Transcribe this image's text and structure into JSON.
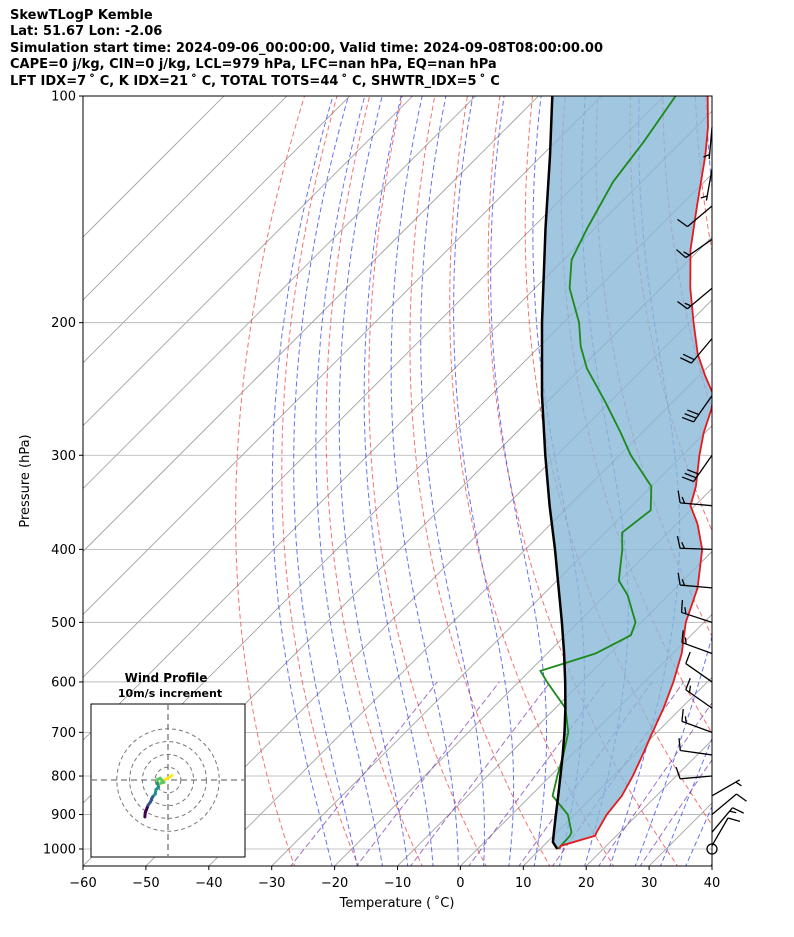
{
  "header": {
    "line1": "SkewTLogP Kemble",
    "line2": "Lat: 51.67   Lon: -2.06",
    "line3": "Simulation start time: 2024-09-06_00:00:00, Valid time: 2024-09-08T08:00:00.00",
    "line4": "CAPE=0 j/kg, CIN=0 j/kg, LCL=979 hPa, LFC=nan hPa, EQ=nan hPa",
    "line5": "LFT IDX=7 ˚ C, K IDX=21 ˚ C, TOTAL TOTS=44 ˚ C, SHWTR_IDX=5 ˚ C"
  },
  "chart_data": {
    "type": "skew-t log-p",
    "xlabel": "Temperature ( ˚C)",
    "ylabel": "Pressure (hPa)",
    "xlim": [
      -60,
      40
    ],
    "ylim_hpa": [
      1050,
      100
    ],
    "x_ticks": [
      -60,
      -50,
      -40,
      -30,
      -20,
      -10,
      0,
      10,
      20,
      30,
      40
    ],
    "x_tick_labels": [
      "−60",
      "−50",
      "−40",
      "−30",
      "−20",
      "−10",
      "0",
      "10",
      "20",
      "30",
      "40"
    ],
    "y_ticks": [
      100,
      200,
      300,
      400,
      500,
      600,
      700,
      800,
      900,
      1000
    ],
    "y_tick_labels": [
      "100",
      "200",
      "300",
      "400",
      "500",
      "600",
      "700",
      "800",
      "900",
      "1000"
    ],
    "colors": {
      "temperature": "#e41a1c",
      "dewpoint": "#1a8a1a",
      "parcel": "#000000",
      "cape_shade": "#8ab8d8",
      "dry_adiabat": "#ee4444",
      "moist_adiabat": "#3344ee",
      "mixing_ratio": "#7733aa",
      "isotherm": "#999999"
    },
    "series": [
      {
        "name": "temperature",
        "points": [
          [
            1000,
            13
          ],
          [
            990,
            12.8
          ],
          [
            960,
            16.6
          ],
          [
            950,
            16.3
          ],
          [
            900,
            15.1
          ],
          [
            850,
            14.5
          ],
          [
            800,
            13.1
          ],
          [
            750,
            11.3
          ],
          [
            700,
            9.3
          ],
          [
            650,
            7.2
          ],
          [
            600,
            4.6
          ],
          [
            550,
            1.4
          ],
          [
            500,
            -2.9
          ],
          [
            450,
            -6.5
          ],
          [
            400,
            -11.9
          ],
          [
            370,
            -16.7
          ],
          [
            350,
            -20.7
          ],
          [
            330,
            -22.9
          ],
          [
            300,
            -27.3
          ],
          [
            280,
            -30.2
          ],
          [
            260,
            -32.8
          ],
          [
            250,
            -34.5
          ],
          [
            235,
            -39.1
          ],
          [
            220,
            -43.7
          ],
          [
            200,
            -49.3
          ],
          [
            180,
            -55.3
          ],
          [
            160,
            -61.4
          ],
          [
            140,
            -67.3
          ],
          [
            120,
            -74.0
          ],
          [
            110,
            -78.1
          ],
          [
            100,
            -83.1
          ]
        ]
      },
      {
        "name": "dewpoint",
        "points": [
          [
            1000,
            12.8
          ],
          [
            960,
            12.6
          ],
          [
            950,
            12.3
          ],
          [
            900,
            8.9
          ],
          [
            850,
            3.5
          ],
          [
            800,
            1.1
          ],
          [
            750,
            -1.3
          ],
          [
            700,
            -4.1
          ],
          [
            650,
            -8.4
          ],
          [
            600,
            -15.5
          ],
          [
            580,
            -18.3
          ],
          [
            550,
            -12.3
          ],
          [
            520,
            -9.6
          ],
          [
            500,
            -10.9
          ],
          [
            460,
            -16.5
          ],
          [
            440,
            -20.2
          ],
          [
            400,
            -24.6
          ],
          [
            380,
            -27.3
          ],
          [
            355,
            -26.3
          ],
          [
            330,
            -30.0
          ],
          [
            300,
            -38.2
          ],
          [
            280,
            -43.4
          ],
          [
            255,
            -50.7
          ],
          [
            230,
            -59.0
          ],
          [
            215,
            -63.5
          ],
          [
            200,
            -67.5
          ],
          [
            180,
            -74.5
          ],
          [
            165,
            -78.7
          ],
          [
            150,
            -81.2
          ],
          [
            130,
            -84.5
          ],
          [
            115,
            -86.0
          ],
          [
            100,
            -88.2
          ]
        ]
      },
      {
        "name": "parcel",
        "points": [
          [
            1000,
            12.7
          ],
          [
            979,
            10.9
          ],
          [
            950,
            9.5
          ],
          [
            900,
            7.0
          ],
          [
            850,
            4.4
          ],
          [
            800,
            1.6
          ],
          [
            750,
            -1.4
          ],
          [
            700,
            -4.7
          ],
          [
            650,
            -8.4
          ],
          [
            600,
            -12.6
          ],
          [
            550,
            -17.3
          ],
          [
            500,
            -22.6
          ],
          [
            450,
            -28.6
          ],
          [
            400,
            -35.3
          ],
          [
            350,
            -43.1
          ],
          [
            300,
            -51.8
          ],
          [
            250,
            -61.8
          ],
          [
            200,
            -73.4
          ],
          [
            150,
            -87.8
          ],
          [
            120,
            -98.7
          ],
          [
            100,
            -107.8
          ]
        ]
      }
    ],
    "wind_barbs": [
      {
        "p": 1000,
        "kind": "calm"
      },
      {
        "p": 990,
        "speed_kt": 10,
        "dir_deg": 30
      },
      {
        "p": 950,
        "speed_kt": 15,
        "dir_deg": 40
      },
      {
        "p": 900,
        "speed_kt": 10,
        "dir_deg": 50
      },
      {
        "p": 850,
        "speed_kt": 5,
        "dir_deg": 60
      },
      {
        "p": 800,
        "speed_kt": 10,
        "dir_deg": 265
      },
      {
        "p": 750,
        "speed_kt": 10,
        "dir_deg": 278
      },
      {
        "p": 700,
        "speed_kt": 15,
        "dir_deg": 290
      },
      {
        "p": 650,
        "speed_kt": 15,
        "dir_deg": 305
      },
      {
        "p": 600,
        "speed_kt": 10,
        "dir_deg": 305
      },
      {
        "p": 550,
        "speed_kt": 15,
        "dir_deg": 290
      },
      {
        "p": 500,
        "speed_kt": 15,
        "dir_deg": 288
      },
      {
        "p": 450,
        "speed_kt": 15,
        "dir_deg": 275
      },
      {
        "p": 400,
        "speed_kt": 15,
        "dir_deg": 272
      },
      {
        "p": 350,
        "speed_kt": 15,
        "dir_deg": 275
      },
      {
        "p": 300,
        "speed_kt": 30,
        "dir_deg": 215
      },
      {
        "p": 250,
        "speed_kt": 30,
        "dir_deg": 215
      },
      {
        "p": 210,
        "speed_kt": 20,
        "dir_deg": 220
      },
      {
        "p": 180,
        "speed_kt": 15,
        "dir_deg": 230
      },
      {
        "p": 155,
        "speed_kt": 15,
        "dir_deg": 235
      },
      {
        "p": 140,
        "speed_kt": 10,
        "dir_deg": 230
      },
      {
        "p": 125,
        "speed_kt": 5,
        "dir_deg": 190
      },
      {
        "p": 110,
        "speed_kt": 5,
        "dir_deg": 185
      }
    ],
    "hodograph": {
      "title": "Wind Profile",
      "subtitle": "10m/s increment",
      "ring_spacing_ms": 10,
      "rings": 3,
      "points_uv_ms": [
        [
          1.5,
          1.8
        ],
        [
          0.8,
          1.2
        ],
        [
          -1.0,
          0.2
        ],
        [
          -2.1,
          -0.3
        ],
        [
          -3.1,
          -1.5
        ],
        [
          -2.6,
          -1.2
        ],
        [
          -1.6,
          -0.9
        ],
        [
          -3.0,
          0.7
        ],
        [
          -4.2,
          0.1
        ],
        [
          -4.0,
          -1.3
        ],
        [
          -3.6,
          -2.8
        ],
        [
          -4.6,
          -3.6
        ],
        [
          -4.9,
          -5.4
        ],
        [
          -6.0,
          -6.6
        ],
        [
          -6.7,
          -8.4
        ],
        [
          -7.6,
          -9.6
        ],
        [
          -8.0,
          -10.6
        ],
        [
          -8.4,
          -11.7
        ],
        [
          -8.7,
          -12.4
        ],
        [
          -8.8,
          -13.2
        ],
        [
          -8.9,
          -14.2
        ]
      ]
    }
  }
}
